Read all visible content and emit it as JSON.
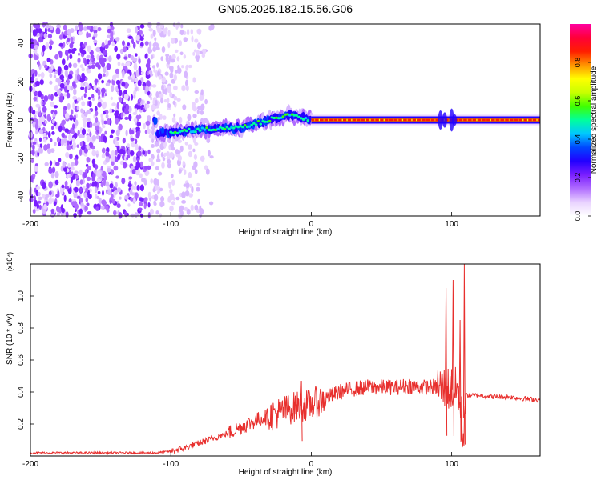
{
  "title": "GN05.2025.182.15.56.G06",
  "chart_data": [
    {
      "type": "heatmap",
      "xlabel": "Height of straight line (km)",
      "ylabel": "Frequency (Hz)",
      "xlim": [
        -200,
        163
      ],
      "ylim": [
        -50,
        50
      ],
      "xticks": [
        -200,
        -100,
        0,
        100
      ],
      "yticks": [
        -40,
        -20,
        0,
        20,
        40
      ],
      "colorbar": {
        "label": "Normalized spectral amplitude",
        "range": [
          0,
          1
        ],
        "ticks": [
          "0.0",
          "0.2",
          "0.4",
          "0.6",
          "0.8"
        ],
        "colors": [
          "#ffffff",
          "#e9d3ff",
          "#b06cff",
          "#7a1fff",
          "#2200ff",
          "#0047ff",
          "#00c8ff",
          "#00ff9c",
          "#40ff00",
          "#c8ff00",
          "#ffff00",
          "#ff9400",
          "#ff1e00",
          "#ff0038",
          "#ff00a0"
        ]
      },
      "features": {
        "noise_band_x": [
          -200,
          -80
        ],
        "signal_ridge": [
          {
            "x": -110,
            "freq": -7
          },
          {
            "x": -80,
            "freq": -5
          },
          {
            "x": -50,
            "freq": -4
          },
          {
            "x": -30,
            "freq": 0
          },
          {
            "x": -15,
            "freq": 3
          },
          {
            "x": 0,
            "freq": 0
          },
          {
            "x": 163,
            "freq": 0
          }
        ]
      }
    },
    {
      "type": "line",
      "xlabel": "Height of straight line (km)",
      "ylabel": "SNR (10 * v/v)",
      "y_multiplier": "(x10⁴)",
      "xlim": [
        -200,
        163
      ],
      "ylim": [
        0,
        1.2
      ],
      "xticks": [
        -200,
        -100,
        0,
        100
      ],
      "yticks": [
        "0.2",
        "0.4",
        "0.6",
        "0.8",
        "1.0"
      ],
      "series": [
        {
          "color": "#e8302e",
          "x": [
            -200,
            -150,
            -110,
            -100,
            -90,
            -80,
            -70,
            -60,
            -50,
            -40,
            -30,
            -20,
            -10,
            0,
            10,
            20,
            30,
            40,
            50,
            60,
            70,
            80,
            90,
            95,
            100,
            105,
            108,
            110,
            120,
            130,
            140,
            150,
            163
          ],
          "y": [
            0.02,
            0.02,
            0.02,
            0.03,
            0.05,
            0.08,
            0.11,
            0.14,
            0.18,
            0.22,
            0.25,
            0.28,
            0.31,
            0.32,
            0.36,
            0.4,
            0.42,
            0.43,
            0.43,
            0.43,
            0.44,
            0.43,
            0.43,
            0.42,
            0.42,
            0.4,
            0.1,
            0.38,
            0.38,
            0.37,
            0.37,
            0.36,
            0.35
          ]
        }
      ],
      "spikes": [
        {
          "x": -7,
          "y": 0.47
        },
        {
          "x": 96,
          "y": 1.05
        },
        {
          "x": 101,
          "y": 1.1
        },
        {
          "x": 106,
          "y": 0.85
        },
        {
          "x": 109,
          "y": 1.2
        }
      ]
    }
  ]
}
